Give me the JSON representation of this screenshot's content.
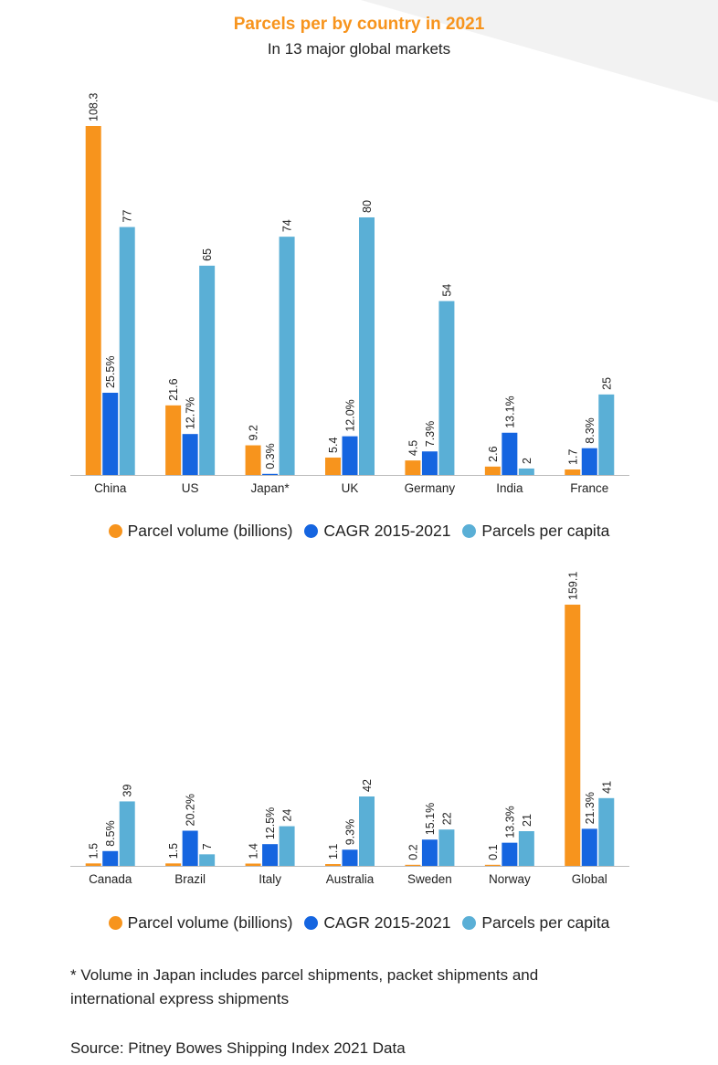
{
  "title": "Parcels per by country in 2021",
  "subtitle": "In 13 major global markets",
  "colors": {
    "title": "#F7941D",
    "volume": "#F7941D",
    "cagr": "#1565E0",
    "capita": "#5AAFD6",
    "axis": "#bbbbbb",
    "wedge": "#f2f2f2"
  },
  "legend": {
    "volume": "Parcel volume (billions)",
    "cagr": "CAGR 2015-2021",
    "capita": "Parcels per capita"
  },
  "chart_data": [
    {
      "type": "bar",
      "title": "Parcels per by country in 2021",
      "categories": [
        "China",
        "US",
        "Japan*",
        "UK",
        "Germany",
        "India",
        "France"
      ],
      "series": [
        {
          "name": "Parcel volume (billions)",
          "key": "volume",
          "values": [
            108.3,
            21.6,
            9.2,
            5.4,
            4.5,
            2.6,
            1.7
          ],
          "labels": [
            "108.3",
            "21.6",
            "9.2",
            "5.4",
            "4.5",
            "2.6",
            "1.7"
          ]
        },
        {
          "name": "CAGR 2015-2021",
          "key": "cagr",
          "values": [
            25.5,
            12.7,
            0.3,
            12.0,
            7.3,
            13.1,
            8.3
          ],
          "labels": [
            "25.5%",
            "12.7%",
            "0.3%",
            "12.0%",
            "7.3%",
            "13.1%",
            "8.3%"
          ]
        },
        {
          "name": "Parcels per capita",
          "key": "capita",
          "values": [
            77,
            65,
            74,
            80,
            54,
            2,
            25
          ],
          "labels": [
            "77",
            "65",
            "74",
            "80",
            "54",
            "2",
            "25"
          ]
        }
      ],
      "legend": "bottom-center"
    },
    {
      "type": "bar",
      "categories": [
        "Canada",
        "Brazil",
        "Italy",
        "Australia",
        "Sweden",
        "Norway",
        "Global"
      ],
      "series": [
        {
          "name": "Parcel volume (billions)",
          "key": "volume",
          "values": [
            1.5,
            1.5,
            1.4,
            1.1,
            0.2,
            0.1,
            159.1
          ],
          "labels": [
            "1.5",
            "1.5",
            "1.4",
            "1.1",
            "0.2",
            "0.1",
            "159.1"
          ]
        },
        {
          "name": "CAGR 2015-2021",
          "key": "cagr",
          "values": [
            8.5,
            20.2,
            12.5,
            9.3,
            15.1,
            13.3,
            21.3
          ],
          "labels": [
            "8.5%",
            "20.2%",
            "12.5%",
            "9.3%",
            "15.1%",
            "13.3%",
            "21.3%"
          ]
        },
        {
          "name": "Parcels per capita",
          "key": "capita",
          "values": [
            39,
            7,
            24,
            42,
            22,
            21,
            41
          ],
          "labels": [
            "39",
            "7",
            "24",
            "42",
            "22",
            "21",
            "41"
          ]
        }
      ],
      "legend": "bottom-center"
    }
  ],
  "footnote": "* Volume in Japan includes parcel shipments, packet shipments and international express shipments",
  "source": "Source: Pitney Bowes Shipping Index 2021 Data"
}
